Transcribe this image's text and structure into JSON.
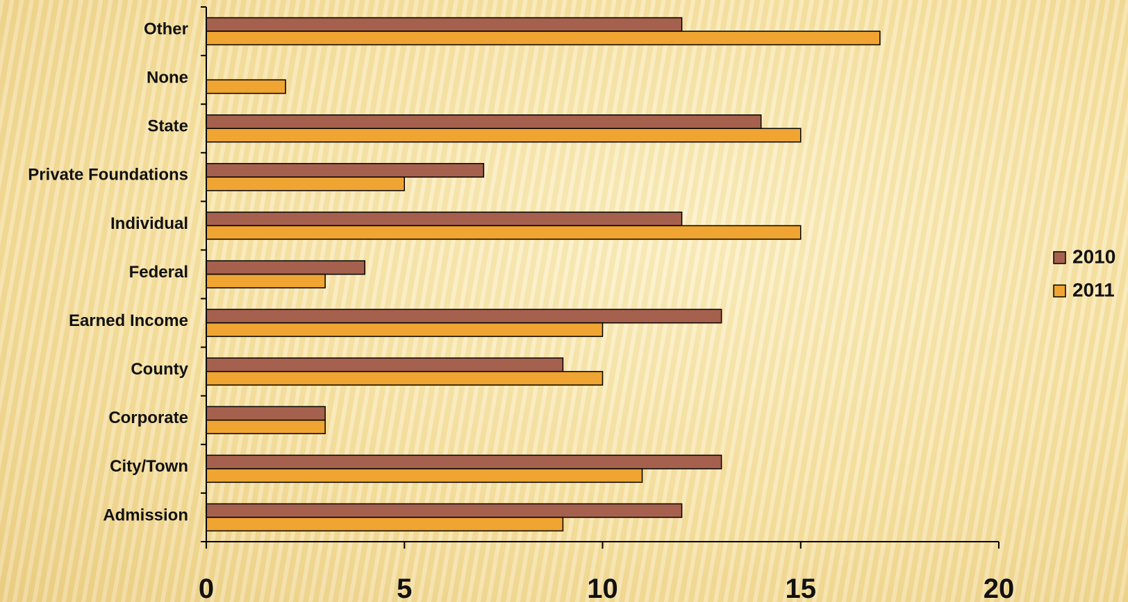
{
  "chart_data": {
    "type": "bar",
    "orientation": "horizontal",
    "categories": [
      "Admission",
      "City/Town",
      "Corporate",
      "County",
      "Earned Income",
      "Federal",
      "Individual",
      "Private Foundations",
      "State",
      "None",
      "Other"
    ],
    "series": [
      {
        "name": "2010",
        "color": "#a5614d",
        "values": [
          12,
          13,
          3,
          9,
          13,
          4,
          12,
          7,
          14,
          0,
          12
        ]
      },
      {
        "name": "2011",
        "color": "#f0a431",
        "values": [
          9,
          11,
          3,
          10,
          10,
          3,
          15,
          5,
          15,
          2,
          17
        ]
      }
    ],
    "xlim": [
      0,
      20
    ],
    "xticks": [
      0,
      5,
      10,
      15,
      20
    ],
    "title": "",
    "xlabel": "",
    "ylabel": "",
    "legend_position": "right",
    "grid": false
  }
}
